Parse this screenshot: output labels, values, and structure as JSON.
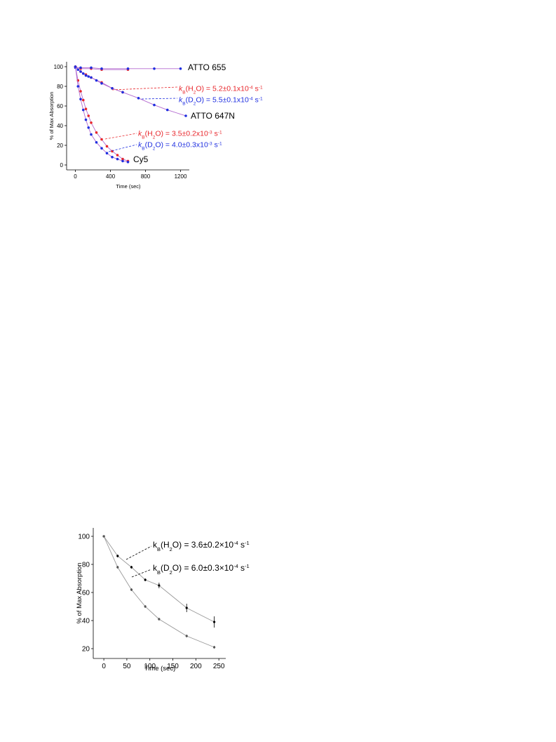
{
  "chart_data": [
    {
      "type": "line",
      "ylabel": "% of Max Absorption",
      "xlabel": "Time (sec)",
      "xlim": [
        -100,
        1300
      ],
      "xticks": [
        0,
        400,
        800,
        1200
      ],
      "ylim": [
        -5,
        105
      ],
      "yticks": [
        0,
        20,
        40,
        60,
        80,
        100
      ],
      "series": [
        {
          "color": "#e8262b",
          "line_color": "#b36ad0",
          "x": [
            0,
            60,
            180,
            300,
            600
          ],
          "values": [
            100,
            98,
            98,
            97,
            97
          ]
        },
        {
          "color": "#1f2fe0",
          "line_color": "#b36ad0",
          "x": [
            0,
            60,
            180,
            300,
            600,
            900,
            1200
          ],
          "values": [
            99,
            99,
            99,
            98,
            98,
            98,
            98
          ]
        },
        {
          "color": "#e8262b",
          "line_color": "#b36ad0",
          "x": [
            0,
            60,
            120,
            180,
            300,
            420,
            540
          ],
          "values": [
            100,
            95,
            92,
            89,
            84,
            78,
            74
          ]
        },
        {
          "color": "#1f2fe0",
          "line_color": "#b36ad0",
          "x": [
            0,
            30,
            60,
            90,
            120,
            150,
            180,
            240,
            300,
            420,
            540,
            720,
            900,
            1050,
            1260
          ],
          "values": [
            100,
            97,
            95,
            93,
            91,
            90,
            89,
            86,
            83,
            78,
            74,
            68,
            61,
            56,
            50
          ]
        },
        {
          "color": "#e8262b",
          "line_color": "#b36ad0",
          "x": [
            0,
            30,
            60,
            90,
            120,
            150,
            180,
            240,
            300,
            360,
            420,
            480,
            540,
            600
          ],
          "values": [
            100,
            86,
            75,
            66,
            57,
            50,
            43,
            33,
            26,
            19,
            14,
            10,
            6,
            4
          ]
        },
        {
          "color": "#1f2fe0",
          "line_color": "#b36ad0",
          "x": [
            0,
            30,
            60,
            90,
            120,
            150,
            180,
            240,
            300,
            360,
            420,
            480,
            540,
            600
          ],
          "values": [
            100,
            80,
            67,
            56,
            46,
            38,
            31,
            23,
            17,
            12,
            8,
            6,
            4,
            3
          ]
        }
      ],
      "annotations": [
        {
          "color": "#000000",
          "parts": [
            {
              "text": "ATTO 655"
            }
          ]
        },
        {
          "color": "#000000",
          "parts": [
            {
              "text": "ATTO 647N"
            }
          ]
        },
        {
          "color": "#000000",
          "parts": [
            {
              "text": "Cy5"
            }
          ]
        },
        {
          "color": "#e8262b",
          "parts": [
            {
              "text": "k",
              "style": "italic"
            },
            {
              "text": "B",
              "shift": "sub"
            },
            {
              "text": "(H"
            },
            {
              "text": "2",
              "shift": "sub"
            },
            {
              "text": "O) = 5.2±0.1x10"
            },
            {
              "text": "-4",
              "shift": "super"
            },
            {
              "text": " s"
            },
            {
              "text": "-1",
              "shift": "super"
            }
          ]
        },
        {
          "color": "#1f2fe0",
          "parts": [
            {
              "text": "k",
              "style": "italic"
            },
            {
              "text": "B",
              "shift": "sub"
            },
            {
              "text": "(D"
            },
            {
              "text": "2",
              "shift": "sub"
            },
            {
              "text": "O) = 5.5±0.1x10"
            },
            {
              "text": "-4",
              "shift": "super"
            },
            {
              "text": " s"
            },
            {
              "text": "-1",
              "shift": "super"
            }
          ]
        },
        {
          "color": "#e8262b",
          "parts": [
            {
              "text": "k",
              "style": "italic"
            },
            {
              "text": "B",
              "shift": "sub"
            },
            {
              "text": "(H"
            },
            {
              "text": "2",
              "shift": "sub"
            },
            {
              "text": "O) = 3.5±0.2x10"
            },
            {
              "text": "-3",
              "shift": "super"
            },
            {
              "text": " s"
            },
            {
              "text": "-1",
              "shift": "super"
            }
          ]
        },
        {
          "color": "#1f2fe0",
          "parts": [
            {
              "text": "k",
              "style": "italic"
            },
            {
              "text": "B",
              "shift": "sub"
            },
            {
              "text": "(D"
            },
            {
              "text": "2",
              "shift": "sub"
            },
            {
              "text": "O) = 4.0±0.3x10"
            },
            {
              "text": "-3",
              "shift": "super"
            },
            {
              "text": " s"
            },
            {
              "text": "-1",
              "shift": "super"
            }
          ]
        }
      ]
    },
    {
      "type": "line",
      "ylabel": "% of Max Absorption",
      "xlabel": "Time (sec)",
      "xlim": [
        -23,
        265
      ],
      "xticks": [
        0,
        50,
        100,
        150,
        200,
        250
      ],
      "ylim": [
        13,
        106
      ],
      "yticks": [
        20,
        40,
        60,
        80,
        100
      ],
      "series": [
        {
          "color": "#000000",
          "line_color": "#999999",
          "x": [
            0,
            30,
            60,
            90,
            120,
            180,
            240
          ],
          "values": [
            100,
            86,
            78,
            69,
            65,
            49,
            39
          ],
          "errors": [
            0,
            1,
            1,
            1,
            2,
            3,
            4
          ]
        },
        {
          "color": "#555555",
          "line_color": "#999999",
          "x": [
            0,
            30,
            60,
            90,
            120,
            180,
            240
          ],
          "values": [
            100,
            78,
            62,
            50,
            41,
            29,
            21
          ],
          "errors": [
            0,
            1,
            1,
            1,
            1,
            1,
            1
          ]
        }
      ],
      "annotations": [
        {
          "color": "#000000",
          "parts": [
            {
              "text": "k"
            },
            {
              "text": "B",
              "shift": "sub"
            },
            {
              "text": "(H"
            },
            {
              "text": "2",
              "shift": "sub"
            },
            {
              "text": "O) = 3.6±0.2×10"
            },
            {
              "text": "-4",
              "shift": "super"
            },
            {
              "text": " s"
            },
            {
              "text": "-1",
              "shift": "super"
            }
          ]
        },
        {
          "color": "#000000",
          "parts": [
            {
              "text": "k"
            },
            {
              "text": "B",
              "shift": "sub"
            },
            {
              "text": "(D"
            },
            {
              "text": "2",
              "shift": "sub"
            },
            {
              "text": "O) = 6.0±0.3×10"
            },
            {
              "text": "-4",
              "shift": "super"
            },
            {
              "text": " s"
            },
            {
              "text": "-1",
              "shift": "super"
            }
          ]
        }
      ]
    }
  ]
}
